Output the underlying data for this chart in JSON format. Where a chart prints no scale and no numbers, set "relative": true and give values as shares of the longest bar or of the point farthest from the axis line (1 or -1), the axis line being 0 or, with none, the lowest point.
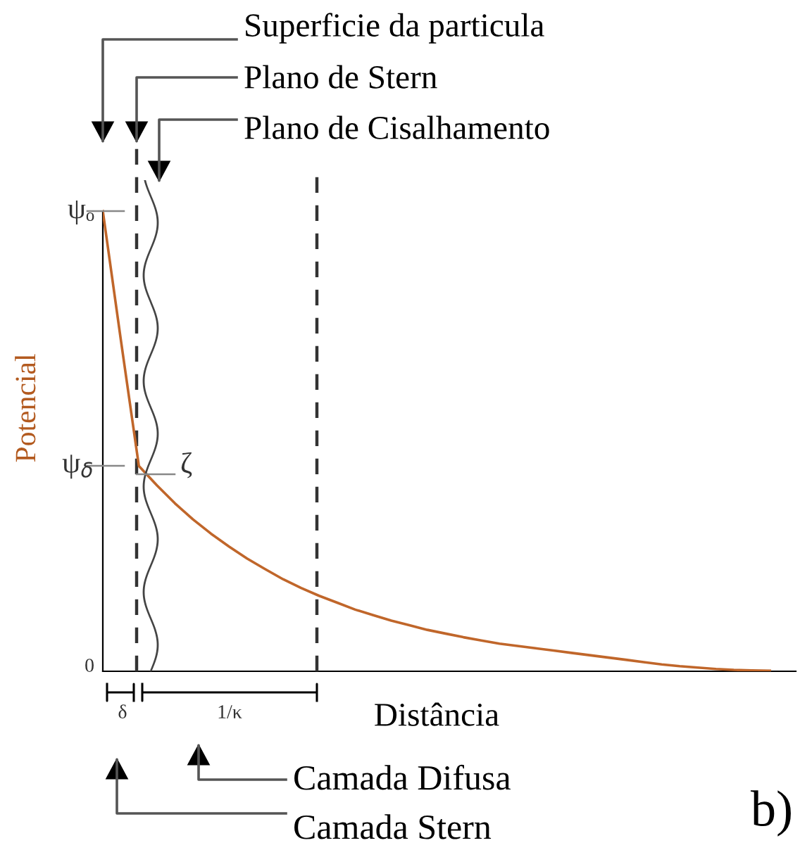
{
  "chart_data": {
    "type": "line",
    "relative": true,
    "xlabel": "Distância",
    "ylabel": "Potencial",
    "categories": [
      null,
      null,
      null,
      null,
      null,
      null,
      null,
      null,
      null,
      null,
      null,
      null,
      null,
      null,
      null,
      null,
      null,
      null,
      null,
      null,
      null,
      null,
      null,
      null,
      null,
      null,
      null,
      null,
      null,
      null,
      null,
      null,
      null,
      null,
      null,
      null,
      null,
      null
    ],
    "series": [
      {
        "color": "#c0662a",
        "values": [
          1.0,
          0.72,
          0.446,
          0.404,
          0.365,
          0.33,
          0.299,
          0.271,
          0.245,
          0.222,
          0.2,
          0.181,
          0.164,
          0.149,
          0.134,
          0.122,
          0.11,
          0.1,
          0.09,
          0.082,
          0.074,
          0.067,
          0.06,
          0.055,
          0.05,
          0.045,
          0.04,
          0.035,
          0.03,
          0.025,
          0.02,
          0.015,
          0.011,
          0.008,
          0.005,
          0.003,
          0.002,
          0.001
        ]
      }
    ],
    "annotations": [
      "ψₒ",
      "ψ$_{δ}$",
      "0",
      "ζ",
      "Superficie da particula",
      "Plano de Stern",
      "Plano de Cisalhamento",
      "δ",
      "1/κ",
      "Camada Difusa",
      "Camada Stern",
      "b)"
    ],
    "line_style": "solid"
  }
}
